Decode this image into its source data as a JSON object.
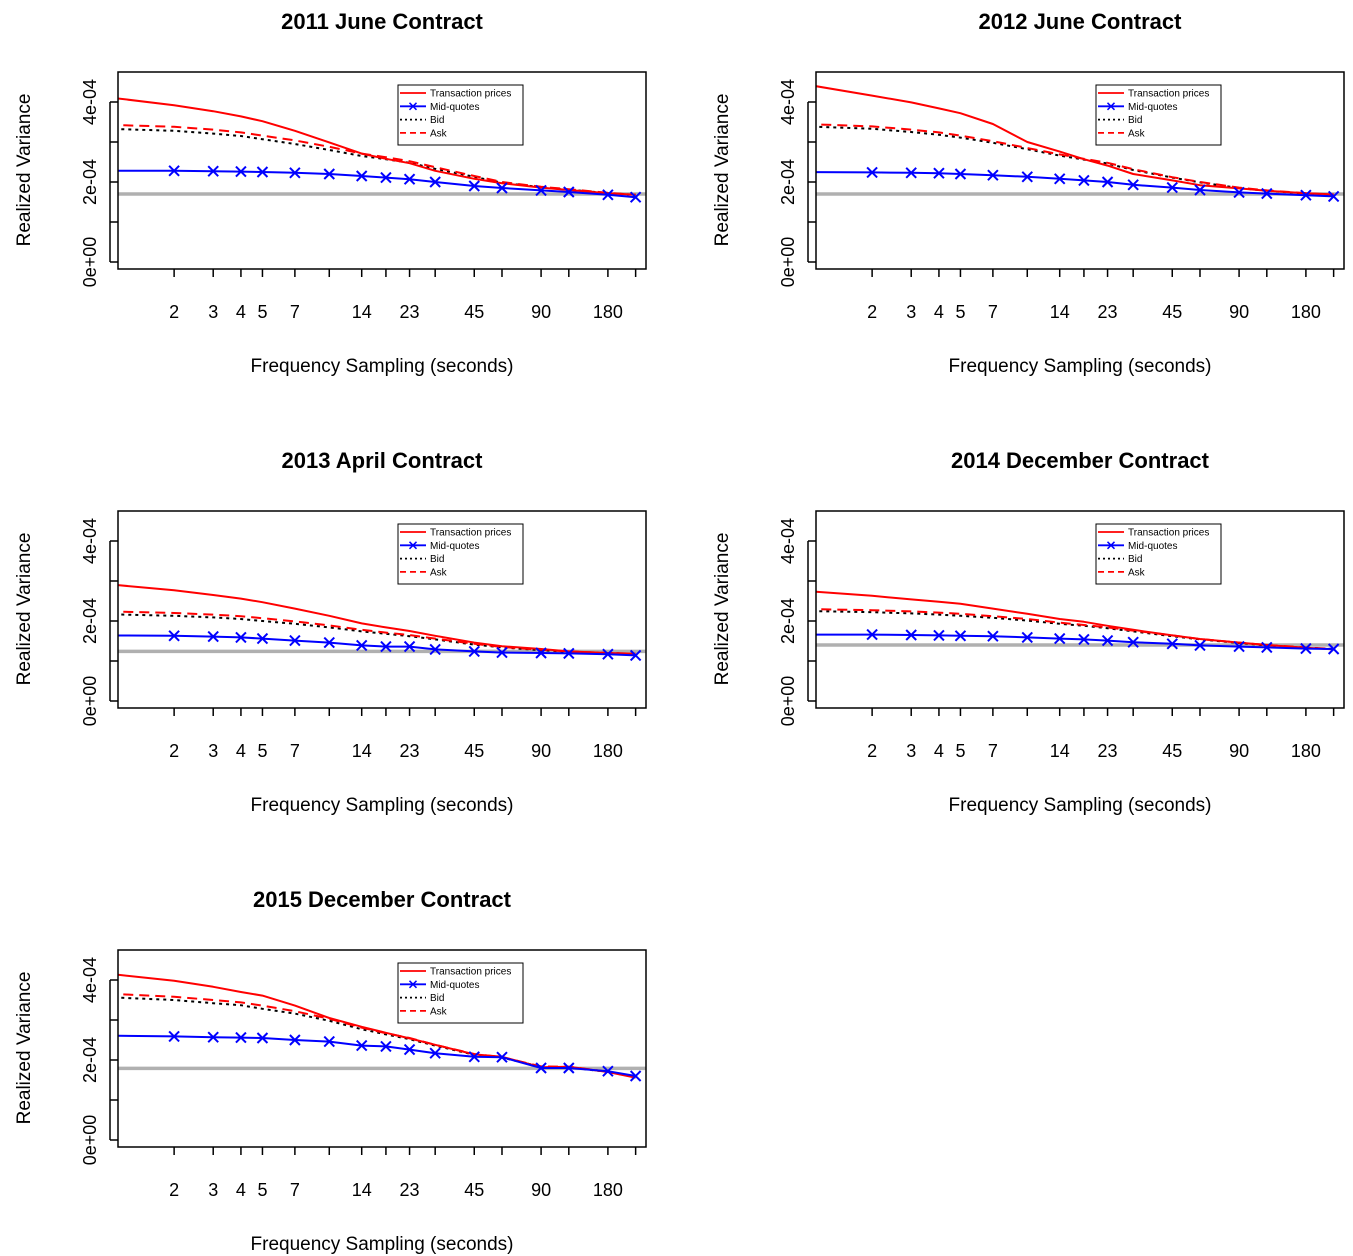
{
  "chart_data": [
    {
      "type": "line",
      "title": "2011 June Contract",
      "xlabel": "Frequency Sampling (seconds)",
      "ylabel": "Realized Variance",
      "x_scale": "log",
      "x_ticks": [
        2,
        3,
        4,
        5,
        7,
        14,
        23,
        45,
        90,
        180
      ],
      "y_ticks": [
        "0e+00",
        "2e-04",
        "4e-04"
      ],
      "ylim": [
        0,
        0.00046
      ],
      "x": [
        1,
        2,
        3,
        4,
        5,
        7,
        10,
        14,
        18,
        23,
        30,
        45,
        60,
        90,
        120,
        180,
        240
      ],
      "series": [
        {
          "name": "Transaction prices",
          "color": "#ff0000",
          "style": "solid",
          "marker": "none",
          "values": [
            0.000412,
            0.000392,
            0.000377,
            0.000364,
            0.000352,
            0.000328,
            0.000299,
            0.000271,
            0.000258,
            0.000247,
            0.000228,
            0.000208,
            0.000197,
            0.000186,
            0.00018,
            0.000172,
            0.000168
          ]
        },
        {
          "name": "Mid-quotes",
          "color": "#0000ff",
          "style": "solid",
          "marker": "x",
          "values": [
            0.000228,
            0.000228,
            0.000227,
            0.000226,
            0.000225,
            0.000223,
            0.00022,
            0.000215,
            0.000211,
            0.000207,
            0.0002,
            0.00019,
            0.000185,
            0.000179,
            0.000175,
            0.000168,
            0.000162
          ]
        },
        {
          "name": "Bid",
          "color": "#000000",
          "style": "dotted",
          "marker": "none",
          "values": [
            0.000333,
            0.000328,
            0.000321,
            0.000315,
            0.000307,
            0.000295,
            0.00028,
            0.000265,
            0.000257,
            0.000248,
            0.000233,
            0.000213,
            0.000198,
            0.000187,
            0.000181,
            0.000172,
            0.000168
          ]
        },
        {
          "name": "Ask",
          "color": "#ff0000",
          "style": "dashed",
          "marker": "none",
          "values": [
            0.000343,
            0.000338,
            0.000331,
            0.000324,
            0.000316,
            0.000304,
            0.000288,
            0.000271,
            0.000262,
            0.000252,
            0.000237,
            0.000215,
            0.0002,
            0.000188,
            0.000182,
            0.000173,
            0.000168
          ]
        }
      ],
      "reference_line": {
        "value": 0.00017,
        "color": "#b0b0b0"
      },
      "legend": "top-right"
    },
    {
      "type": "line",
      "title": "2012 June Contract",
      "xlabel": "Frequency Sampling (seconds)",
      "ylabel": "Realized Variance",
      "x_scale": "log",
      "x_ticks": [
        2,
        3,
        4,
        5,
        7,
        14,
        23,
        45,
        90,
        180
      ],
      "y_ticks": [
        "0e+00",
        "2e-04",
        "4e-04"
      ],
      "ylim": [
        0,
        0.00046
      ],
      "x": [
        1,
        2,
        3,
        4,
        5,
        7,
        10,
        14,
        18,
        23,
        30,
        45,
        60,
        90,
        120,
        180,
        240
      ],
      "series": [
        {
          "name": "Transaction prices",
          "color": "#ff0000",
          "style": "solid",
          "marker": "none",
          "values": [
            0.000444,
            0.000416,
            0.000399,
            0.000384,
            0.000372,
            0.000345,
            0.0003,
            0.000276,
            0.000257,
            0.000241,
            0.00022,
            0.000204,
            0.000192,
            0.000184,
            0.000178,
            0.000172,
            0.000169
          ]
        },
        {
          "name": "Mid-quotes",
          "color": "#0000ff",
          "style": "solid",
          "marker": "x",
          "values": [
            0.000225,
            0.000224,
            0.000223,
            0.000222,
            0.00022,
            0.000217,
            0.000213,
            0.000208,
            0.000204,
            0.0002,
            0.000193,
            0.000186,
            0.00018,
            0.000174,
            0.000171,
            0.000167,
            0.000164
          ]
        },
        {
          "name": "Bid",
          "color": "#000000",
          "style": "dotted",
          "marker": "none",
          "values": [
            0.000339,
            0.000333,
            0.000325,
            0.000318,
            0.000311,
            0.000298,
            0.000282,
            0.000266,
            0.000256,
            0.000246,
            0.00023,
            0.000211,
            0.000199,
            0.000185,
            0.000178,
            0.000171,
            0.000168
          ]
        },
        {
          "name": "Ask",
          "color": "#ff0000",
          "style": "dashed",
          "marker": "none",
          "values": [
            0.000345,
            0.000339,
            0.000331,
            0.000324,
            0.000316,
            0.000302,
            0.000285,
            0.000269,
            0.000258,
            0.000248,
            0.000232,
            0.000212,
            0.0002,
            0.000186,
            0.000179,
            0.000172,
            0.000168
          ]
        }
      ],
      "reference_line": {
        "value": 0.00017,
        "color": "#b0b0b0"
      },
      "legend": "top-right"
    },
    {
      "type": "line",
      "title": "2013 April Contract",
      "xlabel": "Frequency Sampling (seconds)",
      "ylabel": "Realized Variance",
      "x_scale": "log",
      "x_ticks": [
        2,
        3,
        4,
        5,
        7,
        14,
        23,
        45,
        90,
        180
      ],
      "y_ticks": [
        "0e+00",
        "2e-04",
        "4e-04"
      ],
      "ylim": [
        0,
        0.00046
      ],
      "x": [
        1,
        2,
        3,
        4,
        5,
        7,
        10,
        14,
        18,
        23,
        30,
        45,
        60,
        90,
        120,
        180,
        240
      ],
      "series": [
        {
          "name": "Transaction prices",
          "color": "#ff0000",
          "style": "solid",
          "marker": "none",
          "values": [
            0.000292,
            0.000277,
            0.000265,
            0.000256,
            0.000247,
            0.000231,
            0.000213,
            0.000194,
            0.000184,
            0.000175,
            0.000163,
            0.000146,
            0.000137,
            0.00013,
            0.000124,
            0.00012,
            0.000118
          ]
        },
        {
          "name": "Mid-quotes",
          "color": "#0000ff",
          "style": "solid",
          "marker": "x",
          "values": [
            0.000164,
            0.000163,
            0.000161,
            0.000159,
            0.000156,
            0.000151,
            0.000146,
            0.000139,
            0.000136,
            0.000136,
            0.000129,
            0.000124,
            0.000121,
            0.00012,
            0.000119,
            0.000117,
            0.000114
          ]
        },
        {
          "name": "Bid",
          "color": "#000000",
          "style": "dotted",
          "marker": "none",
          "values": [
            0.000217,
            0.000213,
            0.000209,
            0.000205,
            0.0002,
            0.000193,
            0.000184,
            0.000174,
            0.000168,
            0.000162,
            0.000154,
            0.000141,
            0.000134,
            0.000127,
            0.000123,
            0.00012,
            0.000118
          ]
        },
        {
          "name": "Ask",
          "color": "#ff0000",
          "style": "dashed",
          "marker": "none",
          "values": [
            0.000224,
            0.00022,
            0.000216,
            0.000212,
            0.000207,
            0.000199,
            0.000189,
            0.000178,
            0.000171,
            0.000165,
            0.000156,
            0.000143,
            0.000135,
            0.000128,
            0.000124,
            0.00012,
            0.000118
          ]
        }
      ],
      "reference_line": {
        "value": 0.000124,
        "color": "#b0b0b0"
      },
      "legend": "top-right"
    },
    {
      "type": "line",
      "title": "2014 December Contract",
      "xlabel": "Frequency Sampling (seconds)",
      "ylabel": "Realized Variance",
      "x_scale": "log",
      "x_ticks": [
        2,
        3,
        4,
        5,
        7,
        14,
        23,
        45,
        90,
        180
      ],
      "y_ticks": [
        "0e+00",
        "2e-04",
        "4e-04"
      ],
      "ylim": [
        0,
        0.00046
      ],
      "x": [
        1,
        2,
        3,
        4,
        5,
        7,
        10,
        14,
        18,
        23,
        30,
        45,
        60,
        90,
        120,
        180,
        240
      ],
      "series": [
        {
          "name": "Transaction prices",
          "color": "#ff0000",
          "style": "solid",
          "marker": "none",
          "values": [
            0.000275,
            0.000263,
            0.000254,
            0.000248,
            0.000243,
            0.000231,
            0.000218,
            0.000205,
            0.000198,
            0.000188,
            0.000178,
            0.000164,
            0.000155,
            0.000146,
            0.00014,
            0.000133,
            0.000129
          ]
        },
        {
          "name": "Mid-quotes",
          "color": "#0000ff",
          "style": "solid",
          "marker": "x",
          "values": [
            0.000166,
            0.000166,
            0.000165,
            0.000164,
            0.000163,
            0.000162,
            0.000159,
            0.000156,
            0.000154,
            0.000151,
            0.000147,
            0.000143,
            0.000139,
            0.000136,
            0.000134,
            0.000131,
            0.00013
          ]
        },
        {
          "name": "Bid",
          "color": "#000000",
          "style": "dotted",
          "marker": "none",
          "values": [
            0.000225,
            0.000222,
            0.000219,
            0.000216,
            0.000213,
            0.000208,
            0.000201,
            0.000193,
            0.000188,
            0.000182,
            0.000174,
            0.000162,
            0.000154,
            0.000145,
            0.000139,
            0.000133,
            0.00013
          ]
        },
        {
          "name": "Ask",
          "color": "#ff0000",
          "style": "dashed",
          "marker": "none",
          "values": [
            0.00023,
            0.000227,
            0.000224,
            0.000221,
            0.000218,
            0.000212,
            0.000205,
            0.000196,
            0.00019,
            0.000184,
            0.000176,
            0.000164,
            0.000155,
            0.000146,
            0.00014,
            0.000134,
            0.00013
          ]
        }
      ],
      "reference_line": {
        "value": 0.00014,
        "color": "#b0b0b0"
      },
      "legend": "top-right"
    },
    {
      "type": "line",
      "title": "2015 December Contract",
      "xlabel": "Frequency Sampling (seconds)",
      "ylabel": "Realized Variance",
      "x_scale": "log",
      "x_ticks": [
        2,
        3,
        4,
        5,
        7,
        14,
        23,
        45,
        90,
        180
      ],
      "y_ticks": [
        "0e+00",
        "2e-04",
        "4e-04"
      ],
      "ylim": [
        0,
        0.00046
      ],
      "x": [
        1,
        2,
        3,
        4,
        5,
        7,
        10,
        14,
        18,
        23,
        30,
        45,
        60,
        90,
        120,
        180,
        240
      ],
      "series": [
        {
          "name": "Transaction prices",
          "color": "#ff0000",
          "style": "solid",
          "marker": "none",
          "values": [
            0.000416,
            0.000398,
            0.000383,
            0.00037,
            0.000361,
            0.000336,
            0.000305,
            0.000283,
            0.000268,
            0.000254,
            0.000238,
            0.000214,
            0.000208,
            0.000182,
            0.000183,
            0.00017,
            0.000156
          ]
        },
        {
          "name": "Mid-quotes",
          "color": "#0000ff",
          "style": "solid",
          "marker": "x",
          "values": [
            0.000261,
            0.000259,
            0.000257,
            0.000256,
            0.000255,
            0.00025,
            0.000246,
            0.000236,
            0.000234,
            0.000226,
            0.000217,
            0.000208,
            0.000207,
            0.00018,
            0.00018,
            0.000172,
            0.00016
          ]
        },
        {
          "name": "Bid",
          "color": "#000000",
          "style": "dotted",
          "marker": "none",
          "values": [
            0.000357,
            0.00035,
            0.000342,
            0.000337,
            0.000328,
            0.000316,
            0.000298,
            0.000277,
            0.000264,
            0.000252,
            0.000236,
            0.000213,
            0.000206,
            0.000183,
            0.000182,
            0.00017,
            0.000157
          ]
        },
        {
          "name": "Ask",
          "color": "#ff0000",
          "style": "dashed",
          "marker": "none",
          "values": [
            0.000366,
            0.000358,
            0.00035,
            0.000344,
            0.000336,
            0.000322,
            0.000303,
            0.000281,
            0.000267,
            0.000255,
            0.000238,
            0.000215,
            0.000207,
            0.000184,
            0.000183,
            0.000171,
            0.000157
          ]
        }
      ],
      "reference_line": {
        "value": 0.000179,
        "color": "#b0b0b0"
      },
      "legend": "top-right"
    }
  ]
}
